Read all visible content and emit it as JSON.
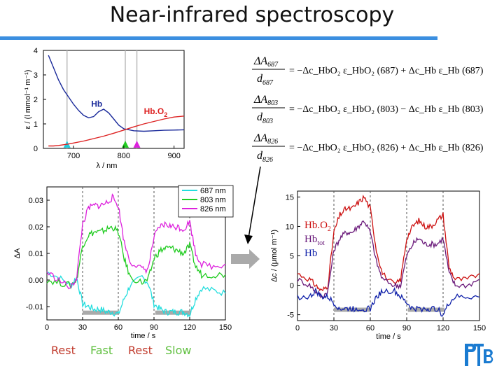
{
  "title": "Near-infrared spectroscopy",
  "spectrum_chart": {
    "hb_label": "Hb",
    "hbo2_label": "Hb.O",
    "hbo2_sub": "2",
    "x_ticks": [
      "700",
      "800",
      "900"
    ],
    "y_ticks": [
      "0",
      "1",
      "2",
      "3",
      "4"
    ],
    "xlabel": "λ / nm",
    "ylabel": "ε / (l mmol⁻¹ m⁻¹)",
    "marker_colors": [
      "#22ccdd",
      "#22cc22",
      "#dd22dd"
    ]
  },
  "equations": [
    {
      "num": "ΔA",
      "sub": "687",
      "den": "d",
      "den_sub": "687",
      "rhs": "= −Δc_HbO₂ ε_HbO₂ (687) + Δc_Hb ε_Hb (687)",
      "wl": "687"
    },
    {
      "num": "ΔA",
      "sub": "803",
      "den": "d",
      "den_sub": "803",
      "rhs": "= −Δc_HbO₂ ε_HbO₂ (803) − Δc_Hb ε_Hb (803)",
      "wl": "803"
    },
    {
      "num": "ΔA",
      "sub": "826",
      "den": "d",
      "den_sub": "826",
      "rhs": "= −Δc_HbO₂ ε_HbO₂ (826) + Δc_Hb ε_Hb (826)",
      "wl": "826"
    }
  ],
  "absorbance_chart": {
    "legend": [
      "687 nm",
      "803 nm",
      "826 nm"
    ],
    "colors": [
      "#22dddd",
      "#22cc22",
      "#dd22dd"
    ],
    "x_ticks": [
      "0",
      "30",
      "60",
      "90",
      "120",
      "150"
    ],
    "y_ticks": [
      "0.03",
      "0.02",
      "0.01",
      "0.00",
      "-0.01"
    ],
    "xlabel": "time / s",
    "ylabel": "ΔA"
  },
  "concentration_chart": {
    "legend": [
      {
        "text": "Hb.O",
        "sub": "2",
        "color": "#cc1111"
      },
      {
        "text": "Hb",
        "sub": "tot",
        "color": "#6a1a7a"
      },
      {
        "text": "Hb",
        "sub": "",
        "color": "#1122aa"
      }
    ],
    "x_ticks": [
      "0",
      "30",
      "60",
      "90",
      "120",
      "150"
    ],
    "y_ticks": [
      "15",
      "10",
      "5",
      "0",
      "-5"
    ],
    "xlabel": "time / s",
    "ylabel": "Δc / (μmol m⁻¹)"
  },
  "phase_labels": [
    {
      "text": "Rest",
      "color": "#c0392b"
    },
    {
      "text": "Fast",
      "color": "#5fbf3f"
    },
    {
      "text": "Rest",
      "color": "#c0392b"
    },
    {
      "text": "Slow",
      "color": "#5fbf3f"
    }
  ],
  "logo_text": "PTB",
  "chart_data": [
    {
      "type": "line",
      "title": "",
      "xlabel": "λ / nm",
      "ylabel": "ε / (l mmol⁻¹ m⁻¹)",
      "xlim": [
        640,
        920
      ],
      "ylim": [
        0,
        4
      ],
      "series": [
        {
          "name": "Hb",
          "x": [
            650,
            660,
            670,
            680,
            690,
            700,
            710,
            720,
            730,
            740,
            750,
            760,
            770,
            780,
            790,
            800,
            820,
            840,
            860,
            880,
            900,
            920
          ],
          "values": [
            3.8,
            3.3,
            2.8,
            2.4,
            2.1,
            1.8,
            1.55,
            1.35,
            1.25,
            1.3,
            1.5,
            1.6,
            1.45,
            1.2,
            0.95,
            0.8,
            0.72,
            0.7,
            0.72,
            0.74,
            0.75,
            0.76
          ]
        },
        {
          "name": "Hb.O2",
          "x": [
            650,
            660,
            670,
            680,
            690,
            700,
            720,
            740,
            760,
            780,
            800,
            820,
            840,
            860,
            880,
            900,
            920
          ],
          "values": [
            0.1,
            0.1,
            0.12,
            0.15,
            0.18,
            0.22,
            0.3,
            0.4,
            0.5,
            0.62,
            0.75,
            0.88,
            1.0,
            1.1,
            1.2,
            1.28,
            1.32
          ]
        }
      ],
      "markers_nm": [
        687,
        803,
        826
      ]
    },
    {
      "type": "line",
      "title": "",
      "xlabel": "time / s",
      "ylabel": "ΔA",
      "xlim": [
        0,
        150
      ],
      "ylim": [
        -0.015,
        0.035
      ],
      "x": [
        0,
        10,
        20,
        25,
        30,
        35,
        40,
        45,
        50,
        55,
        60,
        65,
        70,
        80,
        85,
        90,
        95,
        100,
        105,
        110,
        115,
        120,
        125,
        130,
        140,
        150
      ],
      "series": [
        {
          "name": "687 nm",
          "values": [
            0.003,
            0.001,
            -0.002,
            0.001,
            -0.009,
            -0.01,
            -0.011,
            -0.011,
            -0.012,
            -0.012,
            -0.013,
            -0.007,
            -0.002,
            0.001,
            -0.001,
            -0.009,
            -0.011,
            -0.012,
            -0.012,
            -0.012,
            -0.012,
            -0.013,
            -0.007,
            -0.003,
            -0.004,
            -0.005
          ]
        },
        {
          "name": "803 nm",
          "values": [
            0.0,
            -0.001,
            -0.002,
            0.0,
            0.013,
            0.017,
            0.018,
            0.018,
            0.019,
            0.02,
            0.018,
            0.008,
            0.001,
            -0.001,
            0.0,
            0.008,
            0.011,
            0.012,
            0.012,
            0.011,
            0.01,
            0.013,
            0.005,
            0.002,
            0.002,
            0.002
          ]
        },
        {
          "name": "826 nm",
          "values": [
            0.003,
            0.0,
            -0.003,
            0.001,
            0.021,
            0.027,
            0.028,
            0.028,
            0.029,
            0.031,
            0.028,
            0.014,
            0.007,
            0.004,
            0.004,
            0.016,
            0.02,
            0.021,
            0.02,
            0.02,
            0.019,
            0.022,
            0.01,
            0.006,
            0.005,
            0.006
          ]
        }
      ]
    },
    {
      "type": "line",
      "title": "",
      "xlabel": "time / s",
      "ylabel": "Δc / (μmol m⁻¹)",
      "xlim": [
        0,
        150
      ],
      "ylim": [
        -6,
        16
      ],
      "x": [
        0,
        10,
        15,
        20,
        25,
        30,
        35,
        40,
        45,
        50,
        55,
        60,
        65,
        70,
        80,
        85,
        90,
        95,
        100,
        105,
        110,
        115,
        120,
        125,
        130,
        140,
        150
      ],
      "series": [
        {
          "name": "Hb.O2",
          "values": [
            2,
            1,
            0,
            -1,
            0,
            9,
            12,
            13,
            13,
            14,
            15,
            13,
            6,
            2,
            0,
            1,
            8,
            10,
            11,
            10,
            10,
            11,
            12,
            3,
            1,
            1,
            2
          ]
        },
        {
          "name": "Hbtot",
          "values": [
            1,
            0,
            -1,
            -2,
            -1,
            6,
            8,
            9,
            9,
            10,
            11,
            9,
            4,
            1,
            0,
            0,
            5,
            7,
            8,
            7,
            7,
            7,
            8,
            2,
            0,
            0,
            1
          ]
        },
        {
          "name": "Hb",
          "values": [
            -2,
            -2,
            -1,
            -2,
            -2,
            -3,
            -4,
            -4,
            -4,
            -4,
            -4,
            -4,
            -2,
            -1,
            -1,
            -2,
            -3,
            -4,
            -4,
            -4,
            -4,
            -4,
            -5,
            -3,
            -2,
            -2,
            -2
          ]
        }
      ]
    }
  ]
}
